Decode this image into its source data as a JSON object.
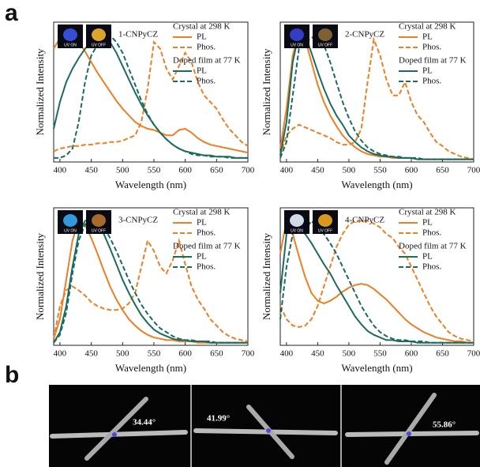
{
  "figure": {
    "panel_a_label": "a",
    "panel_b_label": "b",
    "dihedral_angles": [
      "34.44°",
      "41.99°",
      "55.86°"
    ]
  },
  "chart_data": [
    {
      "type": "line",
      "compound": "1-CNPyCZ",
      "inset_labels": [
        "UV ON",
        "UV OFF"
      ],
      "inset_colors": [
        "#3a55e8",
        "#f2b630"
      ],
      "x_label": "Wavelength (nm)",
      "y_label": "Normalized Intensity",
      "legend_groups": [
        "Crystal at 298 K",
        "Doped film at 77 K"
      ],
      "x": [
        390,
        400,
        410,
        420,
        430,
        440,
        450,
        460,
        470,
        480,
        490,
        500,
        510,
        520,
        530,
        540,
        550,
        560,
        570,
        580,
        590,
        600,
        610,
        620,
        630,
        640,
        650,
        660,
        670,
        680,
        690,
        700
      ],
      "series": [
        {
          "name": "PL",
          "group": 0,
          "color": "#f07d22",
          "dashed": false,
          "values": [
            0.85,
            0.93,
            0.97,
            0.95,
            0.9,
            0.83,
            0.75,
            0.67,
            0.6,
            0.53,
            0.46,
            0.4,
            0.35,
            0.3,
            0.27,
            0.25,
            0.24,
            0.22,
            0.2,
            0.2,
            0.24,
            0.25,
            0.22,
            0.18,
            0.15,
            0.13,
            0.12,
            0.11,
            0.1,
            0.09,
            0.08,
            0.07
          ]
        },
        {
          "name": "Phos.",
          "group": 0,
          "color": "#f07d22",
          "dashed": true,
          "values": [
            0.08,
            0.1,
            0.11,
            0.12,
            0.12,
            0.13,
            0.13,
            0.14,
            0.14,
            0.15,
            0.15,
            0.16,
            0.18,
            0.2,
            0.3,
            0.55,
            0.9,
            0.85,
            0.7,
            0.62,
            0.72,
            0.82,
            0.75,
            0.6,
            0.5,
            0.45,
            0.4,
            0.32,
            0.25,
            0.2,
            0.15,
            0.12
          ]
        },
        {
          "name": "PL",
          "group": 1,
          "color": "#1b6b5e",
          "dashed": false,
          "values": [
            0.25,
            0.45,
            0.6,
            0.7,
            0.78,
            0.85,
            0.9,
            0.94,
            0.95,
            0.9,
            0.82,
            0.72,
            0.62,
            0.52,
            0.43,
            0.35,
            0.28,
            0.22,
            0.17,
            0.13,
            0.1,
            0.08,
            0.07,
            0.06,
            0.05,
            0.05,
            0.04,
            0.04,
            0.04,
            0.03,
            0.03,
            0.03
          ]
        },
        {
          "name": "Phos.",
          "group": 1,
          "color": "#1b6b5e",
          "dashed": true,
          "values": [
            0.03,
            0.03,
            0.05,
            0.1,
            0.3,
            0.6,
            0.8,
            0.88,
            0.93,
            0.95,
            0.9,
            0.82,
            0.7,
            0.58,
            0.46,
            0.36,
            0.28,
            0.22,
            0.17,
            0.13,
            0.1,
            0.08,
            0.06,
            0.05,
            0.05,
            0.04,
            0.04,
            0.04,
            0.03,
            0.03,
            0.03,
            0.03
          ]
        }
      ],
      "xlim": [
        390,
        700
      ],
      "ylim": [
        0,
        1.05
      ],
      "xticks": [
        400,
        450,
        500,
        550,
        600,
        650,
        700
      ]
    },
    {
      "type": "line",
      "compound": "2-CNPyCZ",
      "inset_labels": [
        "UV ON",
        "UV OFF"
      ],
      "inset_colors": [
        "#3b43d8",
        "#8a6a38"
      ],
      "x_label": "Wavelength (nm)",
      "y_label": "Normalized Intensity",
      "legend_groups": [
        "Crystal at 298 K",
        "Doped film at 77 K"
      ],
      "x": [
        390,
        400,
        410,
        420,
        430,
        440,
        450,
        460,
        470,
        480,
        490,
        500,
        510,
        520,
        530,
        540,
        550,
        560,
        570,
        580,
        590,
        600,
        610,
        620,
        630,
        640,
        650,
        660,
        670,
        680,
        690,
        700
      ],
      "series": [
        {
          "name": "PL",
          "group": 0,
          "color": "#f07d22",
          "dashed": false,
          "values": [
            0.1,
            0.4,
            0.8,
            0.97,
            0.92,
            0.75,
            0.58,
            0.45,
            0.35,
            0.27,
            0.2,
            0.15,
            0.11,
            0.08,
            0.06,
            0.05,
            0.04,
            0.04,
            0.03,
            0.03,
            0.03,
            0.03,
            0.02,
            0.02,
            0.02,
            0.02,
            0.02,
            0.02,
            0.02,
            0.02,
            0.02,
            0.02
          ]
        },
        {
          "name": "Phos.",
          "group": 0,
          "color": "#f07d22",
          "dashed": true,
          "values": [
            0.05,
            0.2,
            0.25,
            0.28,
            0.26,
            0.24,
            0.22,
            0.2,
            0.18,
            0.15,
            0.13,
            0.13,
            0.15,
            0.25,
            0.6,
            0.92,
            0.8,
            0.62,
            0.5,
            0.5,
            0.6,
            0.45,
            0.35,
            0.3,
            0.22,
            0.15,
            0.12,
            0.08,
            0.06,
            0.04,
            0.03,
            0.02
          ]
        },
        {
          "name": "PL",
          "group": 1,
          "color": "#1b6b5e",
          "dashed": false,
          "values": [
            0.05,
            0.3,
            0.75,
            0.97,
            0.95,
            0.82,
            0.68,
            0.55,
            0.44,
            0.35,
            0.28,
            0.2,
            0.15,
            0.11,
            0.08,
            0.06,
            0.05,
            0.04,
            0.04,
            0.03,
            0.03,
            0.03,
            0.02,
            0.02,
            0.02,
            0.02,
            0.02,
            0.02,
            0.02,
            0.02,
            0.02,
            0.02
          ]
        },
        {
          "name": "Phos.",
          "group": 1,
          "color": "#1b6b5e",
          "dashed": true,
          "values": [
            0.03,
            0.15,
            0.5,
            0.85,
            0.9,
            0.93,
            0.96,
            0.88,
            0.75,
            0.6,
            0.45,
            0.33,
            0.23,
            0.16,
            0.11,
            0.08,
            0.06,
            0.05,
            0.04,
            0.04,
            0.03,
            0.03,
            0.03,
            0.02,
            0.02,
            0.02,
            0.02,
            0.02,
            0.02,
            0.02,
            0.02,
            0.02
          ]
        }
      ],
      "xlim": [
        390,
        700
      ],
      "ylim": [
        0,
        1.05
      ],
      "xticks": [
        400,
        450,
        500,
        550,
        600,
        650,
        700
      ]
    },
    {
      "type": "line",
      "compound": "3-CNPyCZ",
      "inset_labels": [
        "UV ON",
        "UV OFF"
      ],
      "inset_colors": [
        "#39a8f0",
        "#b8742e"
      ],
      "x_label": "Wavelength (nm)",
      "y_label": "Normalized Intensity",
      "legend_groups": [
        "Crystal at 298 K",
        "Doped film at 77 K"
      ],
      "x": [
        390,
        400,
        410,
        420,
        430,
        440,
        450,
        460,
        470,
        480,
        490,
        500,
        510,
        520,
        530,
        540,
        550,
        560,
        570,
        580,
        590,
        600,
        610,
        620,
        630,
        640,
        650,
        660,
        670,
        680,
        690,
        700
      ],
      "series": [
        {
          "name": "PL",
          "group": 0,
          "color": "#f07d22",
          "dashed": false,
          "values": [
            0.05,
            0.2,
            0.5,
            0.8,
            0.95,
            0.92,
            0.82,
            0.7,
            0.57,
            0.45,
            0.35,
            0.27,
            0.2,
            0.15,
            0.11,
            0.08,
            0.06,
            0.05,
            0.04,
            0.04,
            0.03,
            0.03,
            0.03,
            0.02,
            0.02,
            0.02,
            0.02,
            0.02,
            0.02,
            0.02,
            0.02,
            0.02
          ]
        },
        {
          "name": "Phos.",
          "group": 0,
          "color": "#f07d22",
          "dashed": true,
          "values": [
            0.05,
            0.3,
            0.42,
            0.45,
            0.42,
            0.38,
            0.33,
            0.3,
            0.28,
            0.27,
            0.27,
            0.28,
            0.32,
            0.4,
            0.6,
            0.8,
            0.72,
            0.6,
            0.55,
            0.65,
            0.8,
            0.62,
            0.45,
            0.35,
            0.28,
            0.2,
            0.15,
            0.1,
            0.07,
            0.05,
            0.04,
            0.03
          ]
        },
        {
          "name": "PL",
          "group": 1,
          "color": "#1b6b5e",
          "dashed": false,
          "values": [
            0.02,
            0.1,
            0.3,
            0.6,
            0.85,
            0.95,
            0.97,
            0.93,
            0.85,
            0.74,
            0.62,
            0.5,
            0.4,
            0.31,
            0.23,
            0.17,
            0.12,
            0.09,
            0.07,
            0.05,
            0.04,
            0.04,
            0.03,
            0.03,
            0.03,
            0.02,
            0.02,
            0.02,
            0.02,
            0.02,
            0.02,
            0.02
          ]
        },
        {
          "name": "Phos.",
          "group": 1,
          "color": "#1b6b5e",
          "dashed": true,
          "values": [
            0.02,
            0.08,
            0.25,
            0.55,
            0.8,
            0.92,
            0.97,
            0.96,
            0.9,
            0.82,
            0.72,
            0.61,
            0.5,
            0.4,
            0.31,
            0.24,
            0.18,
            0.13,
            0.1,
            0.07,
            0.05,
            0.04,
            0.04,
            0.03,
            0.03,
            0.03,
            0.02,
            0.02,
            0.02,
            0.02,
            0.02,
            0.02
          ]
        }
      ],
      "xlim": [
        390,
        700
      ],
      "ylim": [
        0,
        1.05
      ],
      "xticks": [
        400,
        450,
        500,
        550,
        600,
        650,
        700
      ]
    },
    {
      "type": "line",
      "compound": "4-CNPyCZ",
      "inset_labels": [
        "UV ON",
        "UV OFF"
      ],
      "inset_colors": [
        "#e8f0ff",
        "#f0a820"
      ],
      "x_label": "Wavelength (nm)",
      "y_label": "Normalized Intensity",
      "legend_groups": [
        "Crystal at 298 K",
        "Doped film at 77 K"
      ],
      "x": [
        390,
        400,
        410,
        420,
        430,
        440,
        450,
        460,
        470,
        480,
        490,
        500,
        510,
        520,
        530,
        540,
        550,
        560,
        570,
        580,
        590,
        600,
        610,
        620,
        630,
        640,
        650,
        660,
        670,
        680,
        690,
        700
      ],
      "series": [
        {
          "name": "PL",
          "group": 0,
          "color": "#f07d22",
          "dashed": false,
          "values": [
            0.7,
            0.95,
            0.85,
            0.68,
            0.52,
            0.4,
            0.34,
            0.32,
            0.34,
            0.37,
            0.41,
            0.44,
            0.46,
            0.47,
            0.46,
            0.43,
            0.39,
            0.35,
            0.3,
            0.25,
            0.2,
            0.16,
            0.13,
            0.1,
            0.08,
            0.06,
            0.05,
            0.04,
            0.03,
            0.03,
            0.02,
            0.02
          ]
        },
        {
          "name": "Phos.",
          "group": 0,
          "color": "#f07d22",
          "dashed": true,
          "values": [
            0.3,
            0.2,
            0.15,
            0.14,
            0.15,
            0.2,
            0.3,
            0.45,
            0.6,
            0.75,
            0.85,
            0.92,
            0.95,
            0.95,
            0.95,
            0.93,
            0.9,
            0.85,
            0.82,
            0.75,
            0.7,
            0.6,
            0.5,
            0.4,
            0.3,
            0.22,
            0.16,
            0.1,
            0.07,
            0.05,
            0.04,
            0.03
          ]
        },
        {
          "name": "PL",
          "group": 1,
          "color": "#1b6b5e",
          "dashed": false,
          "values": [
            0.4,
            0.85,
            0.92,
            0.88,
            0.85,
            0.78,
            0.7,
            0.62,
            0.55,
            0.46,
            0.38,
            0.3,
            0.22,
            0.16,
            0.11,
            0.08,
            0.06,
            0.04,
            0.04,
            0.03,
            0.03,
            0.03,
            0.02,
            0.02,
            0.02,
            0.02,
            0.02,
            0.02,
            0.02,
            0.02,
            0.02,
            0.02
          ]
        },
        {
          "name": "Phos.",
          "group": 1,
          "color": "#1b6b5e",
          "dashed": true,
          "values": [
            0.2,
            0.6,
            0.85,
            0.9,
            0.88,
            0.95,
            0.9,
            0.85,
            0.78,
            0.7,
            0.6,
            0.5,
            0.4,
            0.3,
            0.22,
            0.15,
            0.1,
            0.07,
            0.05,
            0.04,
            0.04,
            0.03,
            0.03,
            0.03,
            0.02,
            0.02,
            0.02,
            0.02,
            0.02,
            0.02,
            0.02,
            0.02
          ]
        }
      ],
      "xlim": [
        390,
        700
      ],
      "ylim": [
        0,
        1.05
      ],
      "xticks": [
        400,
        450,
        500,
        550,
        600,
        650,
        700
      ]
    }
  ]
}
